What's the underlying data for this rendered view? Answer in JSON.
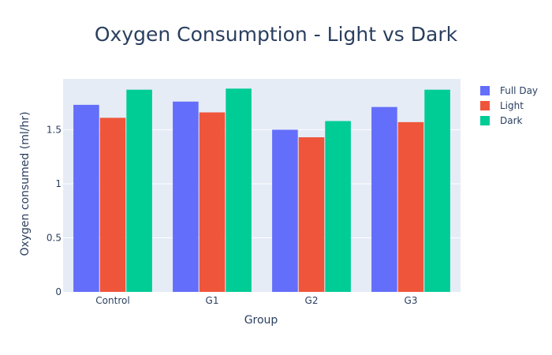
{
  "chart_data": {
    "type": "bar",
    "title": "Oxygen Consumption - Light vs Dark",
    "xlabel": "Group",
    "ylabel": "Oxygen consumed (ml/hr)",
    "categories": [
      "Control",
      "G1",
      "G2",
      "G3"
    ],
    "series": [
      {
        "name": "Full Day",
        "color": "#636efa",
        "values": [
          1.73,
          1.76,
          1.5,
          1.71
        ]
      },
      {
        "name": "Light",
        "color": "#ef553b",
        "values": [
          1.61,
          1.66,
          1.43,
          1.57
        ]
      },
      {
        "name": "Dark",
        "color": "#00cc96",
        "values": [
          1.87,
          1.88,
          1.58,
          1.87
        ]
      }
    ],
    "ylim": [
      0,
      1.97
    ],
    "yticks": [
      {
        "value": 0,
        "label": "0"
      },
      {
        "value": 0.5,
        "label": "0.5"
      },
      {
        "value": 1,
        "label": "1"
      },
      {
        "value": 1.5,
        "label": "1.5"
      }
    ],
    "grid": true,
    "legend_position": "top-right",
    "plot_background": "#e5ecf6"
  }
}
